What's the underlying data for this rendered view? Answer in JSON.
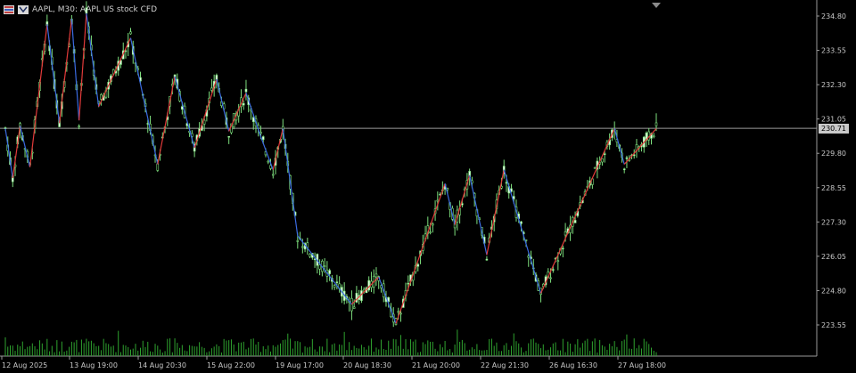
{
  "header": {
    "symbol_title": "AAPL, M30:  AAPL US stock CFD",
    "icons": [
      "one-click-trading-icon",
      "chart-icon"
    ]
  },
  "price_badge": "230.71",
  "colors": {
    "background": "#000000",
    "grid": "#000000",
    "axis": "#9a9a9a",
    "bull_candle": "#7ee07e",
    "bull_fill": "#e6ffe6",
    "bear_candle": "#9af0a0",
    "zigzag_up": "#e23a3a",
    "zigzag_down": "#3a6ae0",
    "volume": "#2fa32f",
    "current_price_line": "#9a9a9a"
  },
  "chart_data": {
    "type": "candlestick",
    "symbol": "AAPL",
    "timeframe": "M30",
    "y_ticks": [
      "234.80",
      "233.55",
      "232.30",
      "231.05",
      "229.80",
      "228.55",
      "227.30",
      "226.05",
      "224.80",
      "223.55"
    ],
    "x_ticks": [
      "12 Aug 2025",
      "13 Aug 19:00",
      "14 Aug 20:30",
      "15 Aug 22:00",
      "19 Aug 17:00",
      "20 Aug 18:30",
      "21 Aug 20:00",
      "22 Aug 21:30",
      "26 Aug 16:30",
      "27 Aug 18:00"
    ],
    "ylim": [
      223.1,
      235.1
    ],
    "current_price": 230.71,
    "zigzag": [
      {
        "i": 0,
        "p": 230.7
      },
      {
        "i": 3,
        "p": 228.9
      },
      {
        "i": 6,
        "p": 230.8
      },
      {
        "i": 10,
        "p": 229.3
      },
      {
        "i": 17,
        "p": 234.5
      },
      {
        "i": 22,
        "p": 230.9
      },
      {
        "i": 27,
        "p": 234.7
      },
      {
        "i": 30,
        "p": 231.0
      },
      {
        "i": 33,
        "p": 234.9
      },
      {
        "i": 38,
        "p": 231.5
      },
      {
        "i": 51,
        "p": 234.0
      },
      {
        "i": 62,
        "p": 229.4
      },
      {
        "i": 69,
        "p": 232.6
      },
      {
        "i": 77,
        "p": 230.0
      },
      {
        "i": 86,
        "p": 232.5
      },
      {
        "i": 91,
        "p": 230.6
      },
      {
        "i": 98,
        "p": 232.0
      },
      {
        "i": 104,
        "p": 230.4
      },
      {
        "i": 109,
        "p": 229.2
      },
      {
        "i": 113,
        "p": 230.7
      },
      {
        "i": 119,
        "p": 226.8
      },
      {
        "i": 141,
        "p": 224.3
      },
      {
        "i": 152,
        "p": 225.3
      },
      {
        "i": 159,
        "p": 223.6
      },
      {
        "i": 179,
        "p": 228.7
      },
      {
        "i": 183,
        "p": 227.2
      },
      {
        "i": 189,
        "p": 229.0
      },
      {
        "i": 196,
        "p": 226.1
      },
      {
        "i": 203,
        "p": 229.2
      },
      {
        "i": 218,
        "p": 224.7
      },
      {
        "i": 248,
        "p": 230.7
      },
      {
        "i": 252,
        "p": 229.4
      },
      {
        "i": 265,
        "p": 230.7
      }
    ],
    "bar_count": 266
  }
}
